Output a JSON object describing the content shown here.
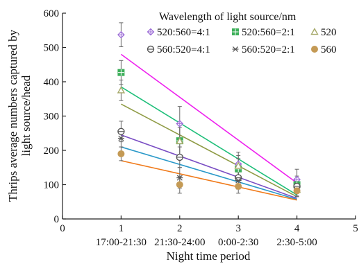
{
  "chart_data": {
    "type": "scatter",
    "xlabel": "Night time period",
    "ylabel": [
      "Thrips average numbers captured by",
      "light source/head"
    ],
    "xlim": [
      0,
      5
    ],
    "ylim": [
      0,
      600
    ],
    "x_ticks": [
      0,
      1,
      2,
      3,
      4,
      5
    ],
    "y_ticks": [
      0,
      100,
      200,
      300,
      400,
      500,
      600
    ],
    "categories": [
      "17:00-21:30",
      "21:30-24:00",
      "0:00-2:30",
      "2:30-5:00"
    ],
    "category_x": [
      1,
      2,
      3,
      4
    ],
    "legend_title": "Wavelength of light source/nm",
    "legend_position": "top-right",
    "series": [
      {
        "name": "520:560=4:1",
        "marker": "diamond-plus",
        "color": "#9b6bd6",
        "line_color": "#ee22ee",
        "values": [
          537,
          278,
          160,
          115
        ],
        "errors": [
          35,
          50,
          35,
          30
        ],
        "trend": [
          480,
          105
        ]
      },
      {
        "name": "520:560=2:1",
        "marker": "square-plus",
        "color": "#3daf5a",
        "line_color": "#1fbf7a",
        "values": [
          427,
          228,
          146,
          100
        ],
        "errors": [
          35,
          45,
          30,
          25
        ],
        "trend": [
          385,
          70
        ]
      },
      {
        "name": "520",
        "marker": "triangle",
        "color": "#a6a96a",
        "line_color": "#8f9b45",
        "values": [
          375,
          227,
          155,
          85
        ],
        "errors": [
          30,
          40,
          30,
          20
        ],
        "trend": [
          335,
          65
        ]
      },
      {
        "name": "560:520=4:1",
        "marker": "circle-minus",
        "color": "#555555",
        "line_color": "#7a4ec4",
        "values": [
          255,
          180,
          120,
          95
        ],
        "errors": [
          30,
          30,
          25,
          20
        ],
        "trend": [
          245,
          60
        ]
      },
      {
        "name": "560:520=2:1",
        "marker": "star",
        "color": "#555555",
        "line_color": "#2a99c9",
        "values": [
          235,
          120,
          112,
          85
        ],
        "errors": [
          25,
          30,
          25,
          20
        ],
        "trend": [
          210,
          57
        ]
      },
      {
        "name": "560",
        "marker": "circle",
        "color": "#c49a55",
        "line_color": "#f07a1a",
        "values": [
          190,
          100,
          95,
          82
        ],
        "errors": [
          20,
          25,
          20,
          15
        ],
        "trend": [
          170,
          55
        ]
      }
    ]
  }
}
